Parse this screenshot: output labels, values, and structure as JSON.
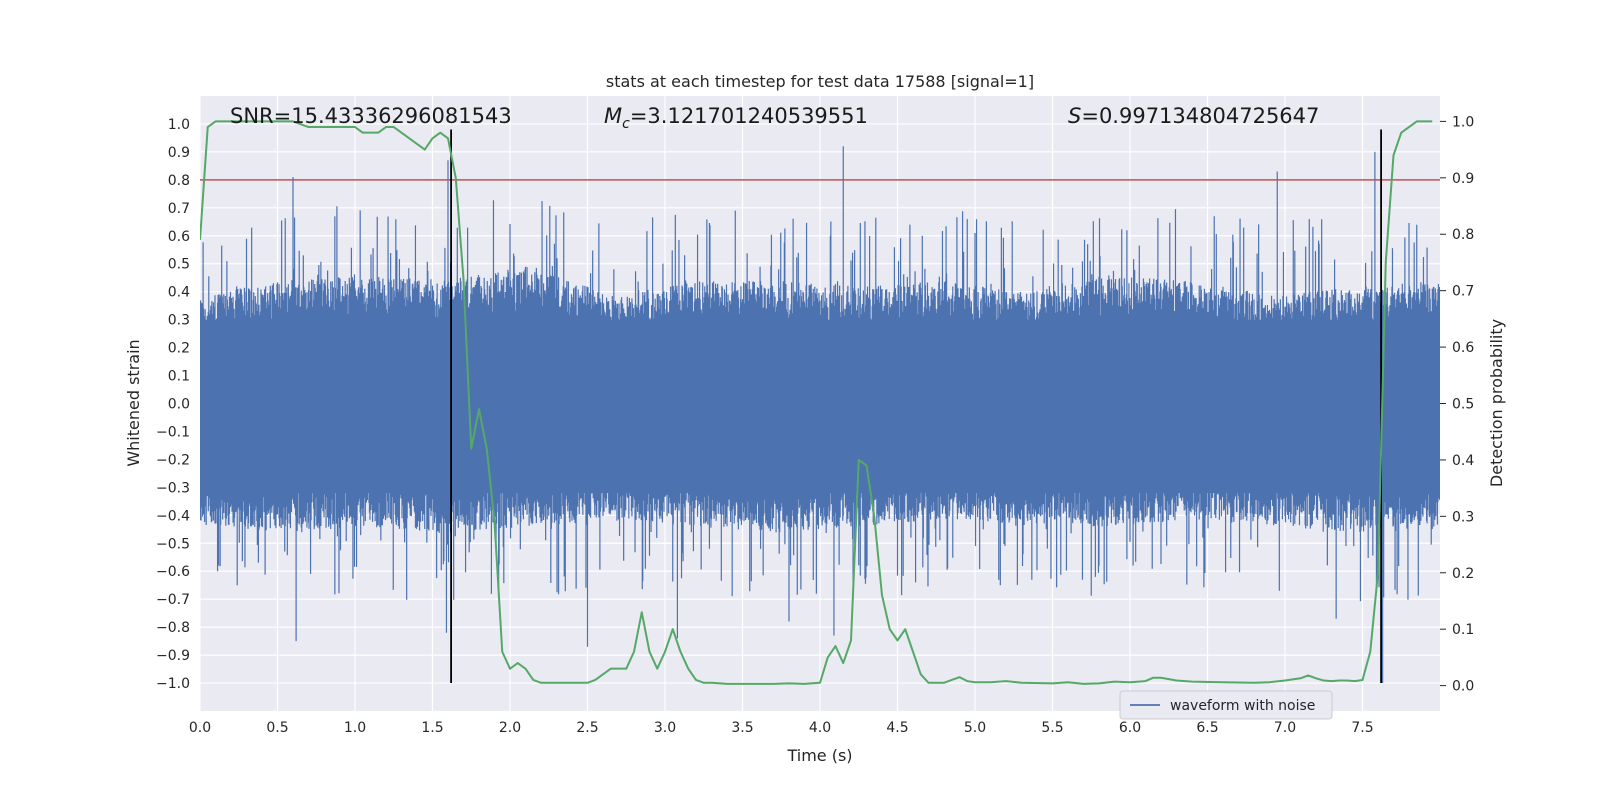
{
  "chart_data": {
    "type": "line",
    "title": "stats at each timestep for test data 17588 [signal=1]",
    "xlabel": "Time (s)",
    "ylabel": "Whitened strain",
    "y2label": "Detection probability",
    "xlim": [
      0.0,
      8.0
    ],
    "ylim": [
      -1.1,
      1.1
    ],
    "y2lim": [
      -0.045,
      1.045
    ],
    "xticks": [
      "0.0",
      "0.5",
      "1.0",
      "1.5",
      "2.0",
      "2.5",
      "3.0",
      "3.5",
      "4.0",
      "4.5",
      "5.0",
      "5.5",
      "6.0",
      "6.5",
      "7.0",
      "7.5"
    ],
    "xtick_values": [
      0.0,
      0.5,
      1.0,
      1.5,
      2.0,
      2.5,
      3.0,
      3.5,
      4.0,
      4.5,
      5.0,
      5.5,
      6.0,
      6.5,
      7.0,
      7.5
    ],
    "yticks": [
      "1.0",
      "0.9",
      "0.8",
      "0.7",
      "0.6",
      "0.5",
      "0.4",
      "0.3",
      "0.2",
      "0.1",
      "0.0",
      "−0.1",
      "−0.2",
      "−0.3",
      "−0.4",
      "−0.5",
      "−0.6",
      "−0.7",
      "−0.8",
      "−0.9",
      "−1.0"
    ],
    "ytick_values": [
      1.0,
      0.9,
      0.8,
      0.7,
      0.6,
      0.5,
      0.4,
      0.3,
      0.2,
      0.1,
      0.0,
      -0.1,
      -0.2,
      -0.3,
      -0.4,
      -0.5,
      -0.6,
      -0.7,
      -0.8,
      -0.9,
      -1.0
    ],
    "y2ticks": [
      "1.0",
      "0.9",
      "0.8",
      "0.7",
      "0.6",
      "0.5",
      "0.4",
      "0.3",
      "0.2",
      "0.1",
      "0.0"
    ],
    "y2tick_values": [
      1.0,
      0.9,
      0.8,
      0.7,
      0.6,
      0.5,
      0.4,
      0.3,
      0.2,
      0.1,
      0.0
    ],
    "annotations": {
      "snr": "SNR=15.43336296081543",
      "mc_symbol": "M",
      "mc_sub": "c",
      "mc_value": "=3.121701240539551",
      "s_symbol": "S",
      "s_value": "=0.997134804725647"
    },
    "series": [
      {
        "name": "waveform with noise",
        "color": "#4c72b0",
        "kind": "noise",
        "envelope_upper": [
          0.35,
          0.4,
          0.42,
          0.4,
          0.45,
          0.35,
          0.4,
          0.4,
          0.38,
          0.4,
          0.36,
          0.42,
          0.4,
          0.35,
          0.38,
          0.4
        ],
        "envelope_lower": [
          -0.4,
          -0.42,
          -0.4,
          -0.42,
          -0.4,
          -0.38,
          -0.4,
          -0.42,
          -0.4,
          -0.38,
          -0.4,
          -0.4,
          -0.38,
          -0.4,
          -0.42,
          -0.4
        ],
        "peaks": [
          {
            "x": 0.6,
            "y": 0.81
          },
          {
            "x": 0.62,
            "y": -0.85
          },
          {
            "x": 1.6,
            "y": 0.87
          },
          {
            "x": 1.59,
            "y": -0.82
          },
          {
            "x": 2.5,
            "y": -0.87
          },
          {
            "x": 3.08,
            "y": -0.84
          },
          {
            "x": 4.09,
            "y": -0.83
          },
          {
            "x": 4.15,
            "y": 0.92
          },
          {
            "x": 6.95,
            "y": 0.83
          },
          {
            "x": 7.58,
            "y": 0.9
          },
          {
            "x": 7.63,
            "y": -1.0
          },
          {
            "x": 7.33,
            "y": -0.77
          },
          {
            "x": 3.8,
            "y": -0.78
          },
          {
            "x": 0.12,
            "y": -0.58
          },
          {
            "x": 5.0,
            "y": 0.61
          }
        ]
      },
      {
        "name": "detection probability",
        "color": "#55a868",
        "axis": "y2",
        "x": [
          0.0,
          0.05,
          0.1,
          0.2,
          0.3,
          0.4,
          0.5,
          0.6,
          0.7,
          0.8,
          0.9,
          1.0,
          1.05,
          1.1,
          1.15,
          1.2,
          1.25,
          1.3,
          1.35,
          1.4,
          1.45,
          1.5,
          1.55,
          1.6,
          1.65,
          1.7,
          1.75,
          1.8,
          1.85,
          1.9,
          1.95,
          2.0,
          2.05,
          2.1,
          2.15,
          2.2,
          2.25,
          2.3,
          2.4,
          2.5,
          2.55,
          2.6,
          2.65,
          2.7,
          2.75,
          2.8,
          2.85,
          2.9,
          2.95,
          3.0,
          3.05,
          3.1,
          3.15,
          3.2,
          3.25,
          3.3,
          3.4,
          3.5,
          3.6,
          3.7,
          3.8,
          3.9,
          4.0,
          4.05,
          4.1,
          4.15,
          4.2,
          4.25,
          4.3,
          4.35,
          4.4,
          4.45,
          4.5,
          4.55,
          4.6,
          4.65,
          4.7,
          4.75,
          4.8,
          4.85,
          4.9,
          4.95,
          5.0,
          5.1,
          5.2,
          5.3,
          5.5,
          5.6,
          5.7,
          5.8,
          5.9,
          6.0,
          6.1,
          6.15,
          6.2,
          6.3,
          6.4,
          6.6,
          6.8,
          6.9,
          7.0,
          7.1,
          7.15,
          7.2,
          7.25,
          7.3,
          7.35,
          7.4,
          7.45,
          7.5,
          7.55,
          7.6,
          7.65,
          7.7,
          7.75,
          7.8,
          7.85,
          7.9,
          7.95
        ],
        "y": [
          0.79,
          0.99,
          1.0,
          1.0,
          1.0,
          1.0,
          1.0,
          1.0,
          0.99,
          0.99,
          0.99,
          0.99,
          0.98,
          0.98,
          0.98,
          0.99,
          0.99,
          0.98,
          0.97,
          0.96,
          0.95,
          0.97,
          0.98,
          0.97,
          0.9,
          0.72,
          0.42,
          0.49,
          0.42,
          0.29,
          0.06,
          0.03,
          0.04,
          0.03,
          0.01,
          0.005,
          0.005,
          0.005,
          0.005,
          0.005,
          0.01,
          0.02,
          0.03,
          0.03,
          0.03,
          0.06,
          0.13,
          0.06,
          0.03,
          0.06,
          0.1,
          0.06,
          0.03,
          0.01,
          0.005,
          0.005,
          0.003,
          0.003,
          0.003,
          0.003,
          0.004,
          0.003,
          0.005,
          0.05,
          0.07,
          0.04,
          0.08,
          0.4,
          0.39,
          0.3,
          0.16,
          0.1,
          0.08,
          0.1,
          0.06,
          0.02,
          0.005,
          0.005,
          0.005,
          0.01,
          0.015,
          0.008,
          0.006,
          0.006,
          0.008,
          0.005,
          0.004,
          0.006,
          0.003,
          0.004,
          0.007,
          0.006,
          0.008,
          0.014,
          0.014,
          0.009,
          0.007,
          0.006,
          0.005,
          0.006,
          0.009,
          0.013,
          0.018,
          0.013,
          0.009,
          0.008,
          0.009,
          0.009,
          0.008,
          0.01,
          0.06,
          0.2,
          0.75,
          0.94,
          0.98,
          0.99,
          1.0,
          1.0,
          1.0
        ]
      }
    ],
    "threshold": {
      "y": 0.8,
      "color": "#c44e52"
    },
    "event_markers": {
      "x": [
        1.62,
        7.62
      ],
      "color": "#000000"
    },
    "legend": {
      "label": "waveform with noise",
      "placement": "lower-right",
      "color": "#4c72b0"
    },
    "grid": true,
    "background": "#eaeaf2"
  }
}
